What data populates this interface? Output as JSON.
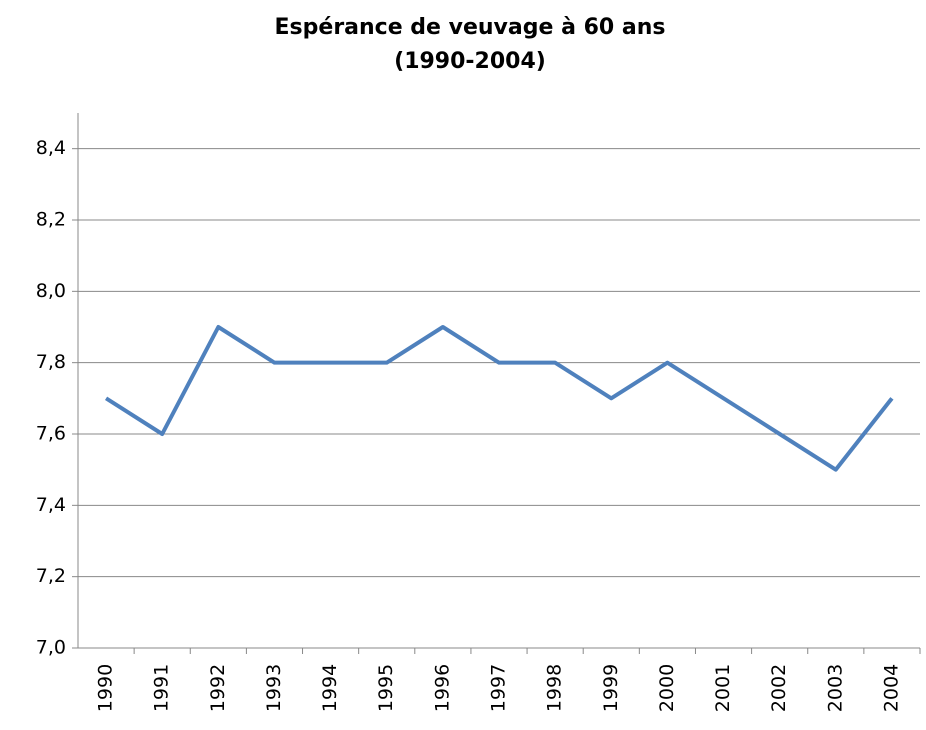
{
  "chart_data": {
    "type": "line",
    "title": "Espérance de veuvage à 60 ans",
    "subtitle": "(1990-2004)",
    "categories": [
      "1990",
      "1991",
      "1992",
      "1993",
      "1994",
      "1995",
      "1996",
      "1997",
      "1998",
      "1999",
      "2000",
      "2001",
      "2002",
      "2003",
      "2004"
    ],
    "series": [
      {
        "color": "#4f81bd",
        "values": [
          7.7,
          7.6,
          7.9,
          7.8,
          7.8,
          7.8,
          7.9,
          7.8,
          7.8,
          7.7,
          7.8,
          7.7,
          7.6,
          7.5,
          7.7
        ]
      }
    ],
    "ylim": [
      7.0,
      8.5
    ],
    "yticks": [
      {
        "value": 7.0,
        "label": "7,0"
      },
      {
        "value": 7.2,
        "label": "7,2"
      },
      {
        "value": 7.4,
        "label": "7,4"
      },
      {
        "value": 7.6,
        "label": "7,6"
      },
      {
        "value": 7.8,
        "label": "7,8"
      },
      {
        "value": 8.0,
        "label": "8,0"
      },
      {
        "value": 8.2,
        "label": "8,2"
      },
      {
        "value": 8.4,
        "label": "8,4"
      }
    ],
    "grid": true
  }
}
